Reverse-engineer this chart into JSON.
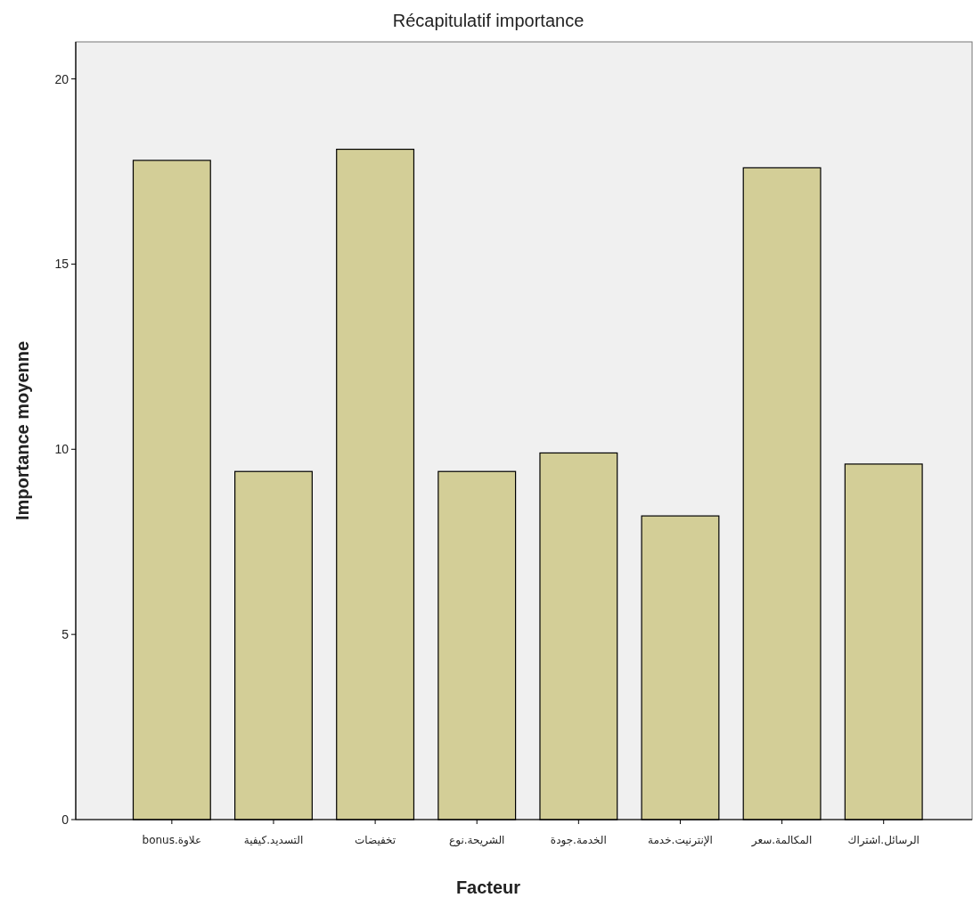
{
  "chart_data": {
    "type": "bar",
    "title": "Récapitulatif importance",
    "xlabel": "Facteur",
    "ylabel": "Importance moyenne",
    "categories": [
      "bonus.علاوة",
      "التسديد.كيفية",
      "تخفيضات",
      "الشريحة.نوع",
      "الخدمة.جودة",
      "الإنترنيت.خدمة",
      "المكالمة.سعر",
      "الرسائل.اشتراك"
    ],
    "values": [
      17.8,
      9.4,
      18.1,
      9.4,
      9.9,
      8.2,
      17.6,
      9.6
    ],
    "color": "#d3ce97",
    "ylim": [
      0,
      21
    ],
    "yticks": [
      0,
      5,
      10,
      15,
      20
    ],
    "grid": false
  }
}
